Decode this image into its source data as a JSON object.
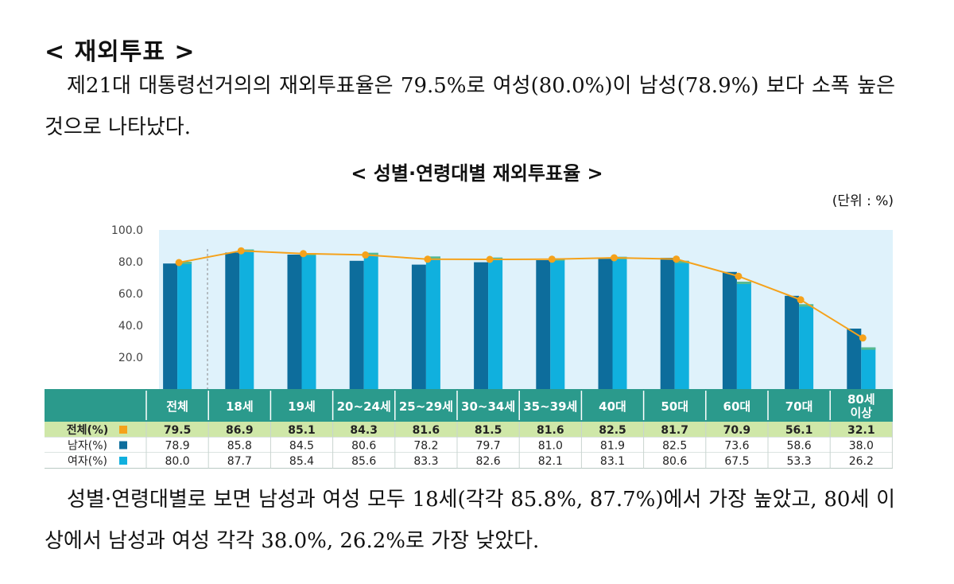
{
  "section_title": "< 재외투표 >",
  "paragraph1": "제21대 대통령선거의의 재외투표율은 79.5%로 여성(80.0%)이 남성(78.9%) 보다 소폭 높은 것으로 나타났다.",
  "paragraph2": "성별·연령대별로 보면 남성과 여성 모두 18세(각각 85.8%, 87.7%)에서 가장 높았고, 80세 이상에서 남성과 여성 각각 38.0%, 26.2%로 가장 낮았다.",
  "colors": {
    "total": "#f5a21b",
    "male": "#0d6d9c",
    "female": "#10b0de",
    "header": "#2b9a8c",
    "plot_bg": "#dff2fb"
  },
  "chart_data": {
    "type": "bar",
    "title": "< 성별·연령대별 재외투표율 >",
    "unit_label": "(단위 : %)",
    "ylim": [
      0,
      100
    ],
    "yticks": [
      "100.0",
      "80.0",
      "60.0",
      "40.0",
      "20.0"
    ],
    "categories": [
      "전체",
      "18세",
      "19세",
      "20~24세",
      "25~29세",
      "30~34세",
      "35~39세",
      "40대",
      "50대",
      "60대",
      "70대",
      "80세 이상"
    ],
    "series": [
      {
        "name": "전체(%)",
        "type": "line",
        "values": [
          79.5,
          86.9,
          85.1,
          84.3,
          81.6,
          81.5,
          81.6,
          82.5,
          81.7,
          70.9,
          56.1,
          32.1
        ]
      },
      {
        "name": "남자(%)",
        "type": "bar",
        "values": [
          78.9,
          85.8,
          84.5,
          80.6,
          78.2,
          79.7,
          81.0,
          81.9,
          82.5,
          73.6,
          58.6,
          38.0
        ]
      },
      {
        "name": "여자(%)",
        "type": "bar",
        "values": [
          80.0,
          87.7,
          85.4,
          85.6,
          83.3,
          82.6,
          82.1,
          83.1,
          80.6,
          67.5,
          53.3,
          26.2
        ]
      }
    ],
    "table_text": {
      "total": [
        "79.5",
        "86.9",
        "85.1",
        "84.3",
        "81.6",
        "81.5",
        "81.6",
        "82.5",
        "81.7",
        "70.9",
        "56.1",
        "32.1"
      ],
      "male": [
        "78.9",
        "85.8",
        "84.5",
        "80.6",
        "78.2",
        "79.7",
        "81.0",
        "81.9",
        "82.5",
        "73.6",
        "58.6",
        "38.0"
      ],
      "female": [
        "80.0",
        "87.7",
        "85.4",
        "85.6",
        "83.3",
        "82.6",
        "82.1",
        "83.1",
        "80.6",
        "67.5",
        "53.3",
        "26.2"
      ]
    }
  }
}
